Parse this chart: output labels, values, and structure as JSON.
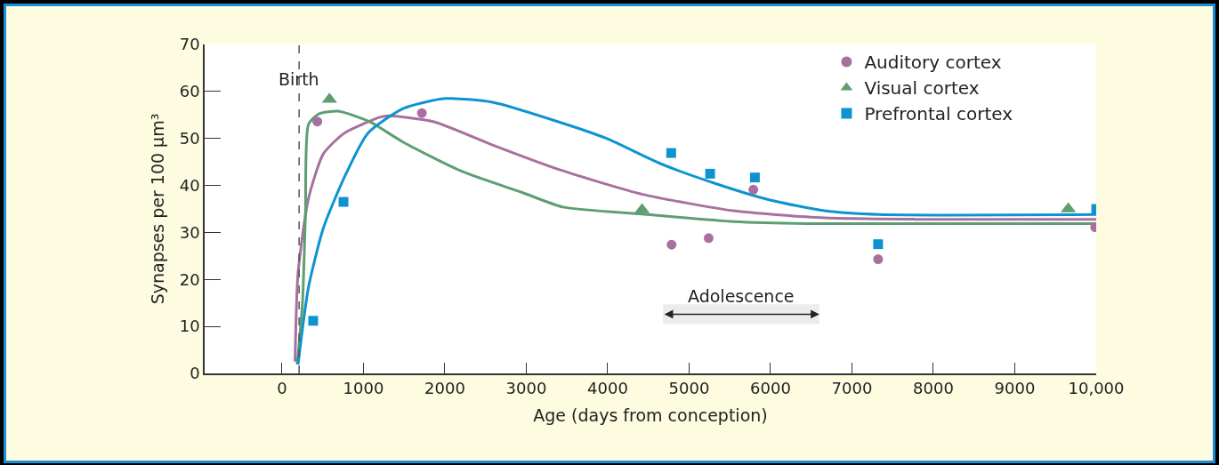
{
  "chart_data": {
    "type": "scatter",
    "xlabel": "Age (days from conception)",
    "ylabel": "Synapses per 100 µm³",
    "xlim": [
      -950,
      10000
    ],
    "xticks": [
      0,
      1000,
      2000,
      3000,
      4000,
      5000,
      6000,
      7000,
      8000,
      9000,
      {
        "value": 10000,
        "label": "10,000"
      }
    ],
    "ylim": [
      0,
      70
    ],
    "yticks": [
      0,
      10,
      20,
      30,
      40,
      50,
      60,
      70
    ],
    "grid": false,
    "legend": "top right",
    "series": [
      {
        "name": "Auditory cortex",
        "type": "scatter",
        "marker": "circle",
        "color": "#a8709e",
        "x": [
          434,
          1718,
          4785,
          5240,
          5789,
          7321,
          9987
        ],
        "values": [
          53.6,
          55.4,
          27.4,
          28.8,
          39.1,
          24.3,
          31.1
        ]
      },
      {
        "name": "Visual cortex",
        "type": "scatter",
        "marker": "triangle",
        "color": "#5e9e72",
        "x": [
          583,
          4422,
          9657
        ],
        "values": [
          58.3,
          34.8,
          35.0
        ]
      },
      {
        "name": "Prefrontal cortex",
        "type": "scatter",
        "marker": "square",
        "color": "#0d94d0",
        "x": [
          383,
          755,
          4780,
          5258,
          5808,
          7321,
          10000
        ],
        "values": [
          11.2,
          36.5,
          46.9,
          42.5,
          41.7,
          27.5,
          35.0
        ]
      },
      {
        "type": "line",
        "color": "#a8709e",
        "x": [
          160,
          197,
          325,
          507,
          762,
          1200,
          1310,
          1857,
          2586,
          3400,
          4431,
          5547,
          6663,
          7779,
          10000
        ],
        "values": [
          2.5,
          21.4,
          37.2,
          46.7,
          51.1,
          54.5,
          54.8,
          53.6,
          48.6,
          43.4,
          38.1,
          34.6,
          33.1,
          32.8,
          32.8
        ]
      },
      {
        "type": "line",
        "color": "#5e9e72",
        "x": [
          186,
          252,
          288,
          325,
          450,
          689,
          1072,
          1490,
          2221,
          2950,
          3450,
          4420,
          5547,
          6441,
          10000
        ],
        "values": [
          1.9,
          15.1,
          34,
          53,
          55.2,
          55.8,
          53.6,
          49.2,
          42.9,
          38.5,
          35.4,
          33.9,
          32.3,
          31.9,
          31.9
        ]
      },
      {
        "type": "line",
        "color": "#0d94d0",
        "x": [
          197,
          325,
          507,
          762,
          1054,
          1492,
          2002,
          2586,
          3420,
          3985,
          4654,
          5325,
          5995,
          6664,
          7334,
          10000
        ],
        "values": [
          1.9,
          18.3,
          30.9,
          41.6,
          51.1,
          56.4,
          58.5,
          57.7,
          53.4,
          50.0,
          44.6,
          40.4,
          36.9,
          34.6,
          33.8,
          33.8
        ]
      }
    ],
    "ref_lines": [
      {
        "axis": "x",
        "value": 210,
        "label": "Birth",
        "color": "#555555",
        "line_style": "dashed"
      }
    ],
    "bands": [
      {
        "axis": "x",
        "from": 4680,
        "to": 6600,
        "label": "Adolescence"
      }
    ]
  }
}
